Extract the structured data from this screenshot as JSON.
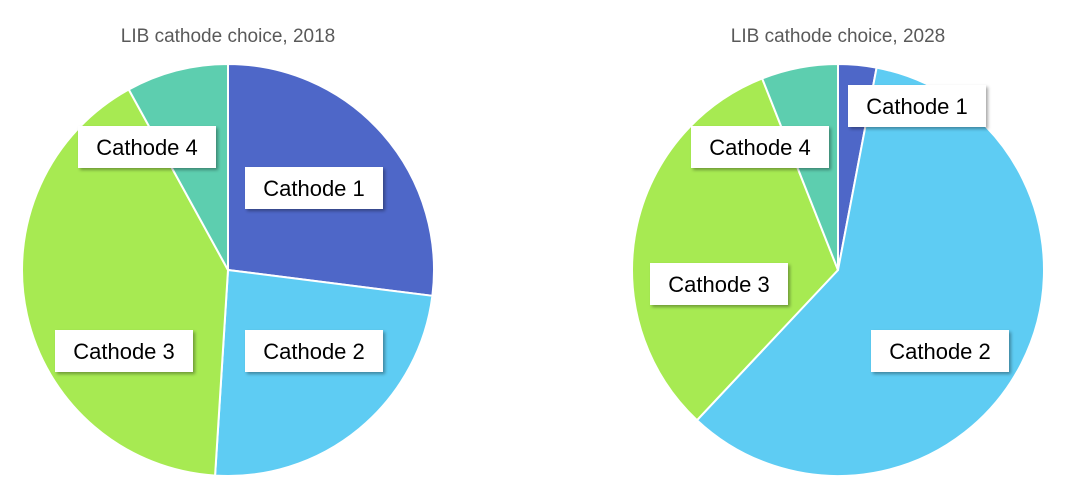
{
  "chart_data": [
    {
      "type": "pie",
      "title": "LIB cathode choice, 2018",
      "categories": [
        "Cathode 1",
        "Cathode 2",
        "Cathode 3",
        "Cathode 4"
      ],
      "values": [
        27,
        24,
        41,
        8
      ],
      "colors": [
        "#4E67C8",
        "#5ECCF3",
        "#A7EA52",
        "#5DCEAF"
      ]
    },
    {
      "type": "pie",
      "title": "LIB cathode choice, 2028",
      "categories": [
        "Cathode 1",
        "Cathode 2",
        "Cathode 3",
        "Cathode 4"
      ],
      "values": [
        3,
        59,
        32,
        6
      ],
      "colors": [
        "#4E67C8",
        "#5ECCF3",
        "#A7EA52",
        "#5DCEAF"
      ]
    }
  ]
}
